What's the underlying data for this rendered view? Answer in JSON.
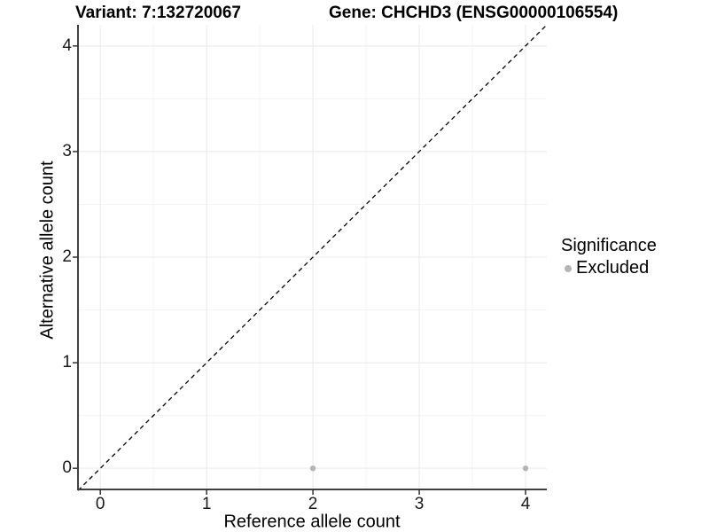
{
  "titles": {
    "variant": "Variant: 7:132720067",
    "gene": "Gene: CHCHD3 (ENSG00000106554)"
  },
  "chart_data": {
    "type": "scatter",
    "title_left": "Variant: 7:132720067",
    "title_right": "Gene: CHCHD3 (ENSG00000106554)",
    "xlabel": "Reference allele count",
    "ylabel": "Alternative allele count",
    "xlim": [
      -0.21,
      4.2
    ],
    "ylim": [
      -0.2,
      4.2
    ],
    "x_ticks": [
      0,
      1,
      2,
      3,
      4
    ],
    "y_ticks": [
      0,
      1,
      2,
      3,
      4
    ],
    "x_minor_ticks": [
      0.5,
      1.5,
      2.5,
      3.5
    ],
    "y_minor_ticks": [
      0.5,
      1.5,
      2.5,
      3.5
    ],
    "grid": true,
    "identity_line": {
      "style": "dashed",
      "from": [
        -0.21,
        -0.21
      ],
      "to": [
        4.2,
        4.2
      ]
    },
    "series": [
      {
        "name": "Excluded",
        "color": "#b5b5b5",
        "points": [
          {
            "x": 2,
            "y": 0
          },
          {
            "x": 4,
            "y": 0
          }
        ]
      }
    ],
    "legend": {
      "title": "Significance",
      "position": "right",
      "entries": [
        {
          "label": "Excluded",
          "color": "#b5b5b5"
        }
      ]
    }
  },
  "colors": {
    "axis_line": "#404040",
    "tick_mark": "#333333",
    "grid_major": "#e9e9e9",
    "grid_minor": "#f3f3f3",
    "identity_line": "#000000",
    "background": "#ffffff"
  }
}
